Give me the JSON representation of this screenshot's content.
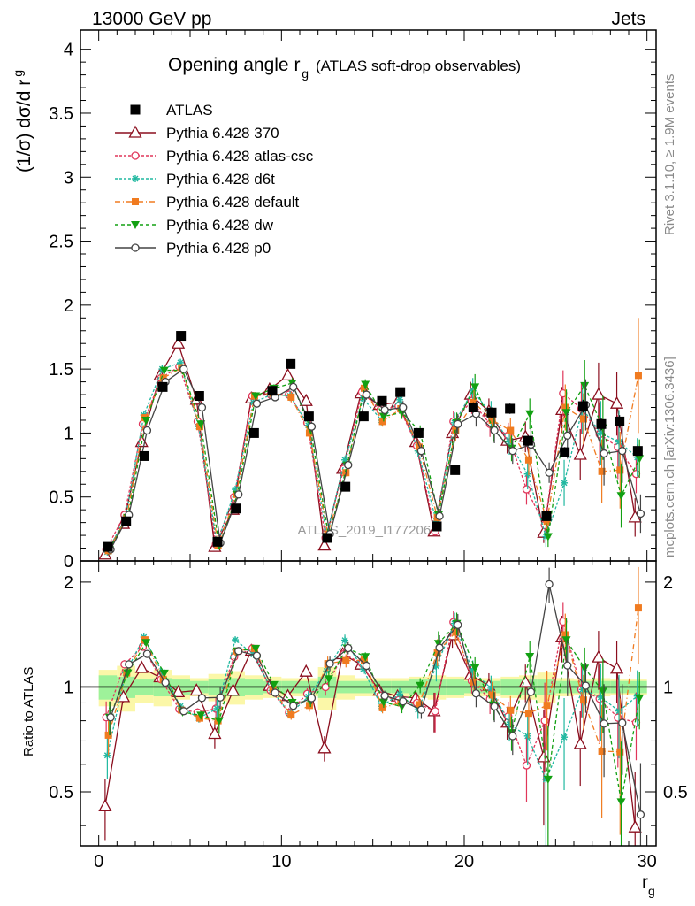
{
  "header": {
    "left": "13000 GeV pp",
    "right": "Jets"
  },
  "side_texts": {
    "rivet": "Rivet 3.1.10, ≥ 1.9M events",
    "mcplots": "mcplots.cern.ch [arXiv:1306.3436]"
  },
  "chart_data": {
    "type": "line",
    "title_main": "Opening angle r",
    "title_sub": "g",
    "title_extra": "(ATLAS soft-drop observables)",
    "watermark": "ATLAS_2019_I1772062",
    "ylabel_main": "(1/σ) dσ/d r",
    "ylabel_sub": "g",
    "ratio_ylabel": "Ratio to ATLAS",
    "xlabel_main": "r",
    "xlabel_sub": "g",
    "xlim": [
      -1,
      30.5
    ],
    "ylim": [
      0,
      4.15
    ],
    "ratio_ylim": [
      0.35,
      2.3
    ],
    "xticks": [
      0,
      10,
      20,
      30
    ],
    "yticks": [
      0,
      0.5,
      1,
      1.5,
      2,
      2.5,
      3,
      3.5,
      4
    ],
    "ytick_labels": [
      "0",
      "0.5",
      "1",
      "1.5",
      "2",
      "2.5",
      "3",
      "3.5",
      "4"
    ],
    "ratio_yticks": [
      0.5,
      1,
      2
    ],
    "ratio_ytick_labels": [
      "0.5",
      "1",
      "2"
    ],
    "x": [
      0.5,
      1.5,
      2.5,
      3.5,
      4.5,
      5.5,
      6.5,
      7.5,
      8.5,
      9.5,
      10.5,
      11.5,
      12.5,
      13.5,
      14.5,
      15.5,
      16.5,
      17.5,
      18.5,
      19.5,
      20.5,
      21.5,
      22.5,
      23.5,
      24.5,
      25.5,
      26.5,
      27.5,
      28.5,
      29.5
    ],
    "data": {
      "name": "ATLAS",
      "values": [
        0.11,
        0.31,
        0.82,
        1.36,
        1.76,
        1.29,
        0.15,
        0.41,
        1.0,
        1.33,
        1.54,
        1.13,
        0.18,
        0.58,
        1.13,
        1.25,
        1.32,
        1.0,
        0.27,
        0.71,
        1.2,
        1.16,
        1.19,
        0.94,
        0.35,
        0.85,
        1.21,
        1.07,
        1.09,
        0.86
      ],
      "errors": [
        0.01,
        0.01,
        0.02,
        0.03,
        0.03,
        0.03,
        0.01,
        0.01,
        0.02,
        0.03,
        0.03,
        0.03,
        0.01,
        0.02,
        0.03,
        0.03,
        0.03,
        0.03,
        0.02,
        0.03,
        0.04,
        0.04,
        0.04,
        0.04,
        0.03,
        0.04,
        0.05,
        0.05,
        0.05,
        0.05
      ],
      "color": "#000000"
    },
    "band_yellow": [
      0.12,
      0.15,
      0.1,
      0.12,
      0.08,
      0.06,
      0.09,
      0.11,
      0.08,
      0.07,
      0.06,
      0.06,
      0.14,
      0.08,
      0.06,
      0.06,
      0.06,
      0.07,
      0.08,
      0.07,
      0.06,
      0.06,
      0.07,
      0.08,
      0.1,
      0.06,
      0.05,
      0.06,
      0.05,
      0.05
    ],
    "band_green": [
      0.08,
      0.07,
      0.05,
      0.06,
      0.05,
      0.04,
      0.05,
      0.06,
      0.05,
      0.04,
      0.04,
      0.04,
      0.07,
      0.04,
      0.04,
      0.04,
      0.04,
      0.05,
      0.05,
      0.05,
      0.04,
      0.04,
      0.05,
      0.05,
      0.05,
      0.04,
      0.04,
      0.04,
      0.04,
      0.04
    ],
    "series": [
      {
        "name": "Pythia 6.428 370",
        "color": "#8b0e1e",
        "dash": "",
        "marker": "tri-open",
        "values": [
          0.05,
          0.29,
          0.93,
          1.45,
          1.7,
          1.26,
          0.11,
          0.4,
          1.27,
          1.34,
          1.45,
          1.25,
          0.12,
          0.72,
          1.31,
          1.22,
          1.24,
          0.93,
          0.23,
          1.0,
          1.3,
          1.17,
          0.94,
          0.97,
          0.22,
          1.18,
          0.83,
          1.3,
          1.23,
          0.34
        ],
        "errors": [
          0.01,
          0.01,
          0.02,
          0.03,
          0.03,
          0.03,
          0.01,
          0.01,
          0.03,
          0.03,
          0.04,
          0.04,
          0.01,
          0.03,
          0.04,
          0.04,
          0.05,
          0.05,
          0.03,
          0.08,
          0.1,
          0.1,
          0.1,
          0.12,
          0.08,
          0.18,
          0.2,
          0.25,
          0.25,
          0.15
        ]
      },
      {
        "name": "Pythia 6.428 atlas-csc",
        "color": "#e0365a",
        "dash": "3,2",
        "marker": "circ-open",
        "values": [
          0.09,
          0.36,
          1.07,
          1.43,
          1.52,
          1.09,
          0.13,
          0.5,
          1.29,
          1.3,
          1.3,
          1.08,
          0.18,
          0.72,
          1.32,
          1.18,
          1.21,
          0.9,
          0.23,
          1.09,
          1.25,
          1.07,
          0.98,
          0.56,
          0.28,
          1.31,
          1.19,
          0.99,
          0.89,
          0.68
        ],
        "errors": [
          0.01,
          0.01,
          0.02,
          0.03,
          0.03,
          0.03,
          0.01,
          0.01,
          0.03,
          0.03,
          0.04,
          0.04,
          0.01,
          0.03,
          0.04,
          0.04,
          0.05,
          0.05,
          0.03,
          0.08,
          0.1,
          0.1,
          0.1,
          0.12,
          0.08,
          0.18,
          0.2,
          0.25,
          0.25,
          0.15
        ]
      },
      {
        "name": "Pythia 6.428 d6t",
        "color": "#20b8a0",
        "dash": "3,2",
        "marker": "star",
        "values": [
          0.07,
          0.34,
          1.14,
          1.5,
          1.55,
          1.05,
          0.13,
          0.56,
          1.24,
          1.3,
          1.29,
          1.06,
          0.2,
          0.79,
          1.27,
          1.1,
          1.26,
          0.86,
          0.31,
          1.08,
          1.33,
          1.15,
          0.93,
          0.68,
          0.19,
          0.61,
          1.19,
          1.0,
          0.93,
          0.81
        ],
        "errors": [
          0.01,
          0.01,
          0.02,
          0.03,
          0.03,
          0.03,
          0.01,
          0.01,
          0.03,
          0.03,
          0.04,
          0.04,
          0.01,
          0.03,
          0.04,
          0.04,
          0.05,
          0.05,
          0.03,
          0.08,
          0.1,
          0.1,
          0.1,
          0.12,
          0.08,
          0.18,
          0.2,
          0.25,
          0.25,
          0.15
        ]
      },
      {
        "name": "Pythia 6.428 default",
        "color": "#f07b20",
        "dash": "6,3,1,3",
        "marker": "sq",
        "values": [
          0.08,
          0.34,
          1.12,
          1.43,
          1.51,
          1.05,
          0.12,
          0.52,
          1.29,
          1.31,
          1.28,
          1.0,
          0.21,
          0.69,
          1.35,
          1.09,
          1.19,
          0.89,
          0.34,
          1.02,
          1.24,
          1.1,
          1.02,
          0.79,
          0.31,
          1.2,
          1.11,
          0.7,
          0.71,
          1.45
        ],
        "errors": [
          0.01,
          0.01,
          0.02,
          0.03,
          0.03,
          0.03,
          0.01,
          0.01,
          0.03,
          0.03,
          0.04,
          0.04,
          0.01,
          0.03,
          0.04,
          0.04,
          0.05,
          0.05,
          0.03,
          0.08,
          0.1,
          0.1,
          0.1,
          0.12,
          0.08,
          0.18,
          0.2,
          0.25,
          0.3,
          0.45
        ]
      },
      {
        "name": "Pythia 6.428 dw",
        "color": "#12a012",
        "dash": "4,3",
        "marker": "tri-down",
        "values": [
          0.09,
          0.34,
          1.1,
          1.49,
          1.49,
          1.07,
          0.12,
          0.52,
          1.29,
          1.35,
          1.39,
          1.03,
          0.19,
          0.75,
          1.38,
          1.13,
          1.16,
          1.01,
          0.36,
          1.08,
          1.36,
          1.03,
          0.88,
          1.15,
          0.19,
          1.16,
          1.37,
          1.04,
          0.51,
          0.8
        ],
        "errors": [
          0.01,
          0.01,
          0.02,
          0.03,
          0.03,
          0.03,
          0.01,
          0.01,
          0.03,
          0.03,
          0.04,
          0.04,
          0.01,
          0.03,
          0.04,
          0.04,
          0.05,
          0.05,
          0.03,
          0.08,
          0.1,
          0.1,
          0.1,
          0.12,
          0.08,
          0.18,
          0.2,
          0.25,
          0.25,
          0.15
        ]
      },
      {
        "name": "Pythia 6.428 p0",
        "color": "#444444",
        "dash": "",
        "marker": "circ-open",
        "values": [
          0.09,
          0.36,
          1.02,
          1.4,
          1.5,
          1.2,
          0.14,
          0.52,
          1.23,
          1.28,
          1.36,
          1.05,
          0.21,
          0.75,
          1.3,
          1.18,
          1.2,
          0.86,
          0.35,
          1.07,
          1.15,
          1.02,
          0.86,
          0.91,
          0.69,
          0.98,
          1.22,
          0.84,
          0.86,
          0.37
        ],
        "errors": [
          0.01,
          0.01,
          0.02,
          0.03,
          0.03,
          0.03,
          0.01,
          0.01,
          0.03,
          0.03,
          0.04,
          0.04,
          0.01,
          0.03,
          0.04,
          0.04,
          0.05,
          0.05,
          0.03,
          0.08,
          0.1,
          0.1,
          0.1,
          0.12,
          0.08,
          0.18,
          0.2,
          0.25,
          0.25,
          0.15
        ]
      }
    ]
  }
}
